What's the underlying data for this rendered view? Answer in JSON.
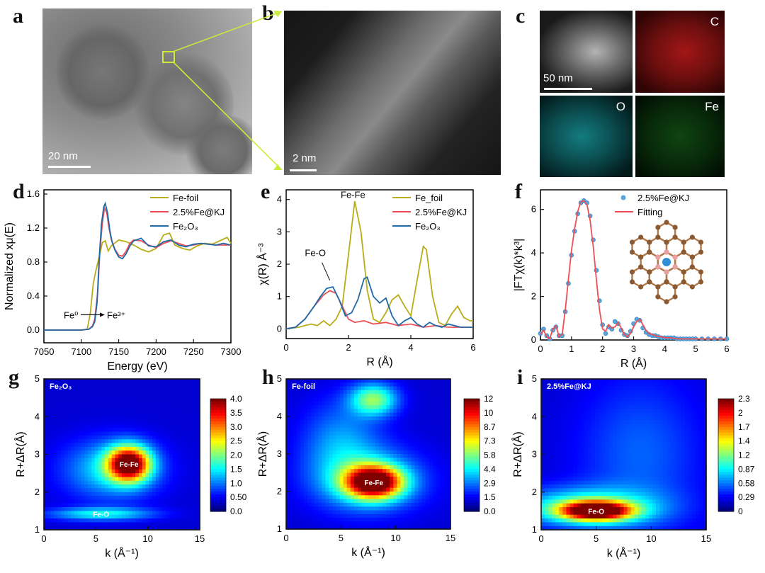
{
  "panel_labels": [
    "a",
    "b",
    "c",
    "d",
    "e",
    "f",
    "g",
    "h",
    "i"
  ],
  "tem": {
    "a_scale": "20 nm",
    "b_scale": "2 nm",
    "c_scale": "50 nm",
    "c_maps": [
      "C",
      "O",
      "Fe"
    ]
  },
  "colors": {
    "foil": "#b8ac18",
    "kj": "#ee4f57",
    "fe2o3": "#1f6aa8",
    "fit": "#ee4f57",
    "points": "#5aa6dc"
  },
  "chart_data": [
    {
      "id": "d",
      "type": "line",
      "xlabel": "Energy (eV)",
      "ylabel": "Normalized xμ(E)",
      "xlim": [
        7050,
        7300
      ],
      "ylim": [
        -0.15,
        1.65
      ],
      "xticks": [
        7050,
        7100,
        7150,
        7200,
        7250,
        7300
      ],
      "yticks": [
        0.0,
        0.4,
        0.8,
        1.2,
        1.6
      ],
      "ytick_labels": [
        "0.0",
        "0.4",
        "0.8",
        "1.2",
        "1.6"
      ],
      "annotation": {
        "left": "Fe⁰",
        "right": "Fe³⁺"
      },
      "series": [
        {
          "name": "Fe-foil",
          "key": "foil",
          "x": [
            7050,
            7100,
            7108,
            7112,
            7116,
            7120,
            7125,
            7128,
            7132,
            7136,
            7140,
            7150,
            7160,
            7170,
            7180,
            7190,
            7200,
            7210,
            7218,
            7225,
            7235,
            7245,
            7255,
            7265,
            7275,
            7285,
            7295,
            7300
          ],
          "y": [
            0,
            0,
            0.01,
            0.2,
            0.55,
            0.72,
            0.9,
            1.03,
            1.05,
            0.93,
            0.99,
            1.06,
            1.04,
            1.0,
            0.95,
            0.92,
            0.96,
            1.12,
            1.14,
            1.0,
            0.96,
            0.94,
            0.99,
            1.02,
            1.01,
            1.05,
            1.09,
            1.02
          ]
        },
        {
          "name": "2.5%Fe@KJ",
          "key": "kj",
          "x": [
            7050,
            7100,
            7110,
            7115,
            7118,
            7122,
            7125,
            7128,
            7131,
            7134,
            7137,
            7140,
            7145,
            7150,
            7155,
            7160,
            7165,
            7170,
            7180,
            7190,
            7200,
            7210,
            7220,
            7230,
            7240,
            7250,
            7260,
            7270,
            7280,
            7290,
            7300
          ],
          "y": [
            0,
            0,
            0.01,
            0.05,
            0.13,
            0.45,
            0.95,
            1.25,
            1.44,
            1.38,
            1.2,
            1.07,
            0.95,
            0.88,
            0.87,
            0.93,
            1.02,
            1.06,
            1.05,
            1.0,
            0.97,
            1.02,
            1.05,
            1.02,
            0.99,
            1.0,
            1.02,
            1.01,
            1.0,
            1.0,
            1.0
          ]
        },
        {
          "name": "Fe₂O₃",
          "key": "fe2o3",
          "x": [
            7050,
            7100,
            7110,
            7115,
            7118,
            7121,
            7124,
            7127,
            7130,
            7132,
            7135,
            7138,
            7141,
            7145,
            7150,
            7155,
            7160,
            7165,
            7170,
            7180,
            7190,
            7200,
            7210,
            7220,
            7230,
            7240,
            7250,
            7260,
            7270,
            7280,
            7290,
            7300
          ],
          "y": [
            0,
            0,
            0.01,
            0.04,
            0.1,
            0.32,
            0.85,
            1.25,
            1.45,
            1.49,
            1.38,
            1.18,
            1.04,
            0.94,
            0.86,
            0.84,
            0.9,
            0.99,
            1.05,
            1.08,
            0.99,
            0.98,
            1.04,
            1.06,
            1.0,
            0.98,
            1.01,
            1.02,
            1.01,
            1.0,
            1.02,
            1.0
          ]
        }
      ]
    },
    {
      "id": "e",
      "type": "line",
      "xlabel": "R (Å)",
      "ylabel": "χ(R) Å⁻³",
      "xlim": [
        0,
        6
      ],
      "ylim": [
        -0.3,
        4.3
      ],
      "xticks": [
        0,
        2,
        4,
        6
      ],
      "yticks": [
        0,
        1,
        2,
        3,
        4
      ],
      "annotations": [
        "Fe-Fe",
        "Fe-O"
      ],
      "series": [
        {
          "name": "Fe_foil",
          "key": "foil",
          "x": [
            0,
            0.4,
            0.8,
            1.0,
            1.2,
            1.4,
            1.6,
            1.8,
            2.0,
            2.2,
            2.4,
            2.6,
            2.8,
            3.0,
            3.2,
            3.4,
            3.6,
            3.8,
            4.0,
            4.2,
            4.4,
            4.5,
            4.7,
            4.9,
            5.1,
            5.3,
            5.5,
            5.7,
            5.9,
            6.0
          ],
          "y": [
            0,
            0.05,
            0.15,
            0.1,
            0.25,
            0.1,
            0.3,
            0.7,
            2.3,
            3.95,
            3.0,
            1.2,
            0.3,
            0.2,
            0.5,
            0.9,
            1.05,
            0.7,
            0.4,
            1.5,
            2.55,
            2.45,
            1.0,
            0.2,
            0.1,
            0.45,
            0.7,
            0.35,
            0.25,
            0.25
          ]
        },
        {
          "name": "2.5%Fe@KJ",
          "key": "kj",
          "x": [
            0,
            0.3,
            0.6,
            0.9,
            1.2,
            1.4,
            1.6,
            1.8,
            2.0,
            2.2,
            2.5,
            2.8,
            3.2,
            3.6,
            4.0,
            4.4,
            4.8,
            5.2,
            5.6,
            6.0
          ],
          "y": [
            0,
            0.05,
            0.3,
            0.7,
            1.05,
            1.18,
            1.1,
            0.7,
            0.3,
            0.2,
            0.25,
            0.15,
            0.2,
            0.1,
            0.15,
            0.05,
            0.1,
            0.05,
            0.05,
            0.05
          ]
        },
        {
          "name": "Fe₂O₃",
          "key": "fe2o3",
          "x": [
            0,
            0.3,
            0.6,
            0.9,
            1.1,
            1.3,
            1.5,
            1.7,
            1.9,
            2.1,
            2.3,
            2.5,
            2.6,
            2.8,
            3.0,
            3.2,
            3.4,
            3.6,
            3.8,
            4.0,
            4.2,
            4.4,
            4.6,
            4.8,
            5.0,
            5.2,
            5.4,
            5.6,
            5.8,
            6.0
          ],
          "y": [
            0,
            0.05,
            0.3,
            0.7,
            1.0,
            1.25,
            1.3,
            0.9,
            0.4,
            0.5,
            0.9,
            1.55,
            1.6,
            1.0,
            0.8,
            0.95,
            0.4,
            0.1,
            0.25,
            0.35,
            0.15,
            0.05,
            0.2,
            0.1,
            0.05,
            0.15,
            0.1,
            0.05,
            0.05,
            0.05
          ]
        }
      ]
    },
    {
      "id": "f",
      "type": "line",
      "xlabel": "R (Å)",
      "ylabel": "|FTχ(k)*k³|",
      "xlim": [
        0,
        6
      ],
      "ylim": [
        0,
        6.9
      ],
      "xticks": [
        0,
        1,
        2,
        3,
        4,
        5,
        6
      ],
      "yticks": [
        0,
        2,
        4,
        6
      ],
      "series": [
        {
          "name": "2.5%Fe@KJ",
          "key": "points",
          "style": "points",
          "x": [
            0,
            0.1,
            0.2,
            0.3,
            0.4,
            0.5,
            0.6,
            0.7,
            0.8,
            0.9,
            1.0,
            1.1,
            1.2,
            1.3,
            1.4,
            1.5,
            1.6,
            1.7,
            1.8,
            1.9,
            2.0,
            2.1,
            2.2,
            2.3,
            2.4,
            2.5,
            2.6,
            2.7,
            2.8,
            2.9,
            3.0,
            3.1,
            3.2,
            3.3,
            3.4,
            3.5,
            3.6,
            3.7,
            3.8,
            3.9,
            4.0,
            4.1,
            4.2,
            4.3,
            4.4,
            4.5,
            4.6,
            4.7,
            4.8,
            4.9,
            5.0,
            5.2,
            5.4,
            5.6,
            5.8,
            6.0
          ],
          "y": [
            0.3,
            0.5,
            0.2,
            0.05,
            0.45,
            0.6,
            0.2,
            0.2,
            1.3,
            2.6,
            3.9,
            5.0,
            5.8,
            6.3,
            6.4,
            6.3,
            5.7,
            4.6,
            3.2,
            1.8,
            0.7,
            0.3,
            0.6,
            0.5,
            0.85,
            0.75,
            0.45,
            0.25,
            0.2,
            0.4,
            0.75,
            0.95,
            0.9,
            0.55,
            0.35,
            0.25,
            0.2,
            0.2,
            0.15,
            0.1,
            0.1,
            0.1,
            0.1,
            0.1,
            0.05,
            0.05,
            0.05,
            0.05,
            0.05,
            0.05,
            0.05,
            0.05,
            0.05,
            0.05,
            0.05,
            0.05
          ]
        },
        {
          "name": "Fitting",
          "key": "fit",
          "style": "line",
          "x": [
            0,
            0.1,
            0.2,
            0.3,
            0.4,
            0.5,
            0.6,
            0.7,
            0.8,
            0.9,
            1.0,
            1.1,
            1.2,
            1.3,
            1.4,
            1.5,
            1.6,
            1.7,
            1.8,
            1.9,
            2.0,
            2.1,
            2.2,
            2.3,
            2.4,
            2.5,
            2.6,
            2.7,
            2.8,
            2.9,
            3.0,
            3.1,
            3.2,
            3.3,
            3.4,
            3.5,
            3.6,
            3.7,
            3.8,
            3.9,
            4.0,
            4.2,
            4.4,
            4.6,
            4.8,
            5.0,
            5.5,
            6.0
          ],
          "y": [
            0.25,
            0.45,
            0.15,
            0.05,
            0.5,
            0.65,
            0.15,
            0.25,
            1.4,
            2.8,
            4.1,
            5.1,
            5.9,
            6.35,
            6.4,
            6.2,
            5.5,
            4.3,
            2.8,
            1.4,
            0.5,
            0.4,
            0.7,
            0.55,
            0.6,
            0.8,
            0.55,
            0.25,
            0.15,
            0.3,
            0.6,
            0.85,
            0.95,
            0.7,
            0.45,
            0.3,
            0.25,
            0.2,
            0.15,
            0.15,
            0.1,
            0.1,
            0.05,
            0.05,
            0.05,
            0.05,
            0.05,
            0.05
          ]
        }
      ]
    },
    {
      "id": "g",
      "type": "heatmap",
      "xlabel": "k (Å⁻¹)",
      "ylabel": "R+ΔR(Å)",
      "inset_label": "Fe₂O₃",
      "xlim": [
        0,
        15
      ],
      "ylim": [
        1,
        5
      ],
      "xticks": [
        0,
        5,
        10,
        15
      ],
      "yticks": [
        1,
        2,
        3,
        4,
        5
      ],
      "colorbar_ticks": [
        "0.0",
        "0.50",
        "1.0",
        "1.5",
        "2.0",
        "2.5",
        "3.0",
        "3.5",
        "4.0"
      ],
      "peak_labels": [
        {
          "text": "Fe-Fe",
          "k": 8.2,
          "r": 2.75
        },
        {
          "text": "Fe-O",
          "k": 5.5,
          "r": 1.42
        }
      ],
      "peaks": [
        {
          "k": 8.2,
          "r": 2.75,
          "a": 4.0,
          "sk": 1.4,
          "sr": 0.32
        },
        {
          "k": 5.5,
          "r": 1.42,
          "a": 1.3,
          "sk": 3.5,
          "sr": 0.12
        },
        {
          "k": 6.5,
          "r": 2.6,
          "a": 1.2,
          "sk": 3.2,
          "sr": 0.55
        }
      ]
    },
    {
      "id": "h",
      "type": "heatmap",
      "xlabel": "k (Å⁻¹)",
      "ylabel": "R+ΔR(Å)",
      "inset_label": "Fe-foil",
      "xlim": [
        0,
        15
      ],
      "ylim": [
        1,
        5
      ],
      "xticks": [
        0,
        5,
        10,
        15
      ],
      "yticks": [
        1,
        2,
        3,
        4,
        5
      ],
      "colorbar_ticks": [
        "0.0",
        "1.5",
        "2.9",
        "4.4",
        "5.8",
        "7.3",
        "8.7",
        "10",
        "12"
      ],
      "peak_labels": [
        {
          "text": "Fe-Fe",
          "k": 8.0,
          "r": 2.25
        }
      ],
      "peaks": [
        {
          "k": 8.0,
          "r": 2.25,
          "a": 12.0,
          "sk": 1.8,
          "sr": 0.3
        },
        {
          "k": 8.0,
          "r": 4.45,
          "a": 5.5,
          "sk": 1.5,
          "sr": 0.3
        },
        {
          "k": 7.5,
          "r": 2.3,
          "a": 3.5,
          "sk": 3.5,
          "sr": 0.6
        },
        {
          "k": 5.0,
          "r": 3.3,
          "a": 2.5,
          "sk": 2.5,
          "sr": 0.8
        }
      ]
    },
    {
      "id": "i",
      "type": "heatmap",
      "xlabel": "k (Å⁻¹)",
      "ylabel": "R+ΔR(Å)",
      "inset_label": "2.5%Fe@KJ",
      "xlim": [
        0,
        15
      ],
      "ylim": [
        1,
        5
      ],
      "xticks": [
        0,
        5,
        10,
        15
      ],
      "yticks": [
        1,
        2,
        3,
        4,
        5
      ],
      "colorbar_ticks": [
        "0",
        "0.29",
        "0.58",
        "0.87",
        "1.2",
        "1.4",
        "1.7",
        "2",
        "2.3"
      ],
      "peak_labels": [
        {
          "text": "Fe-O",
          "k": 5.0,
          "r": 1.5
        }
      ],
      "peaks": [
        {
          "k": 5.0,
          "r": 1.5,
          "a": 2.3,
          "sk": 2.2,
          "sr": 0.17
        },
        {
          "k": 4.0,
          "r": 1.6,
          "a": 0.9,
          "sk": 4.5,
          "sr": 0.35
        },
        {
          "k": 9.0,
          "r": 3.0,
          "a": 0.35,
          "sk": 4.0,
          "sr": 1.5
        }
      ]
    }
  ]
}
